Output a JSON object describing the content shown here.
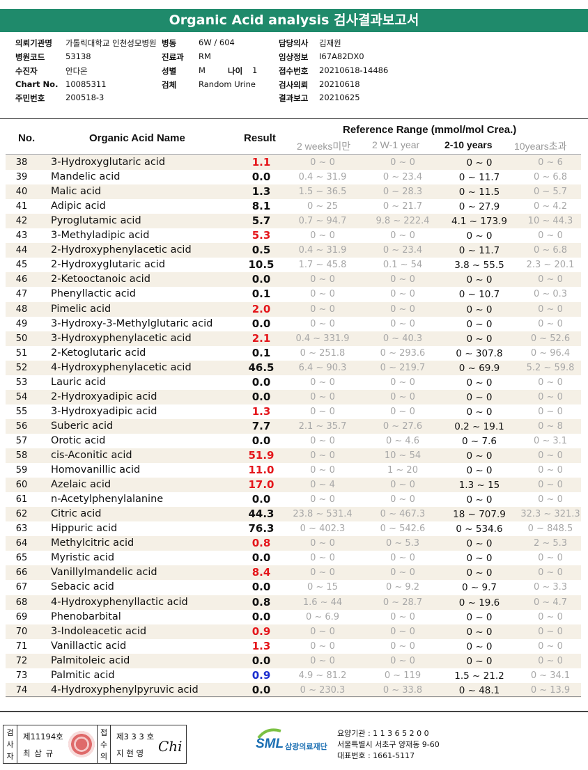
{
  "title": "Organic Acid analysis 검사결과보고서",
  "info": {
    "left": [
      {
        "label": "의뢰기관명",
        "value": "가톨릭대학교 인천성모병원"
      },
      {
        "label": "병원코드",
        "value": "53138"
      },
      {
        "label": "수진자",
        "value": "안다온"
      },
      {
        "label": "Chart No.",
        "value": "10085311"
      },
      {
        "label": "주민번호",
        "value": "200518-3"
      }
    ],
    "mid": [
      {
        "label": "병동",
        "value": "6W / 604"
      },
      {
        "label": "진료과",
        "value": "RM"
      },
      {
        "label": "성별",
        "value": "M"
      },
      {
        "label": "검체",
        "value": "Random Urine"
      }
    ],
    "age_label": "나이",
    "age_value": "1",
    "right": [
      {
        "label": "담당의사",
        "value": "김재원"
      },
      {
        "label": "임상정보",
        "value": "I67A82DX0"
      },
      {
        "label": "접수번호",
        "value": "20210618-14486"
      },
      {
        "label": "검사의뢰",
        "value": "20210618"
      },
      {
        "label": "결과보고",
        "value": "20210625"
      }
    ]
  },
  "table": {
    "col_no": "No.",
    "col_name": "Organic Acid Name",
    "col_result": "Result",
    "ref_title": "Reference Range (mmol/mol Crea.)",
    "ref_cols": [
      "2 weeks미만",
      "2 W-1 year",
      "2-10 years",
      "10years초과"
    ],
    "rows": [
      {
        "no": "38",
        "name": "3-Hydroxyglutaric acid",
        "result": "1.1",
        "flag": "high",
        "r1": "0 ~ 0",
        "r2": "0 ~ 0",
        "r3": "0 ~ 0",
        "r4": "0 ~ 6"
      },
      {
        "no": "39",
        "name": "Mandelic acid",
        "result": "0.0",
        "flag": "",
        "r1": "0.4 ~ 31.9",
        "r2": "0 ~ 23.4",
        "r3": "0 ~ 11.7",
        "r4": "0 ~ 6.8"
      },
      {
        "no": "40",
        "name": "Malic acid",
        "result": "1.3",
        "flag": "",
        "r1": "1.5 ~ 36.5",
        "r2": "0 ~ 28.3",
        "r3": "0 ~ 11.5",
        "r4": "0 ~ 5.7"
      },
      {
        "no": "41",
        "name": "Adipic acid",
        "result": "8.1",
        "flag": "",
        "r1": "0 ~ 25",
        "r2": "0 ~ 21.7",
        "r3": "0 ~ 27.9",
        "r4": "0 ~ 4.2"
      },
      {
        "no": "42",
        "name": "Pyroglutamic acid",
        "result": "5.7",
        "flag": "",
        "r1": "0.7 ~ 94.7",
        "r2": "9.8 ~ 222.4",
        "r3": "4.1 ~ 173.9",
        "r4": "10 ~ 44.3"
      },
      {
        "no": "43",
        "name": "3-Methyladipic acid",
        "result": "5.3",
        "flag": "high",
        "r1": "0 ~ 0",
        "r2": "0 ~ 0",
        "r3": "0 ~ 0",
        "r4": "0 ~ 0"
      },
      {
        "no": "44",
        "name": "2-Hydroxyphenylacetic acid",
        "result": "0.5",
        "flag": "",
        "r1": "0.4 ~ 31.9",
        "r2": "0 ~ 23.4",
        "r3": "0 ~ 11.7",
        "r4": "0 ~ 6.8"
      },
      {
        "no": "45",
        "name": "2-Hydroxyglutaric acid",
        "result": "10.5",
        "flag": "",
        "r1": "1.7 ~ 45.8",
        "r2": "0.1 ~ 54",
        "r3": "3.8 ~ 55.5",
        "r4": "2.3 ~ 20.1"
      },
      {
        "no": "46",
        "name": "2-Ketooctanoic acid",
        "result": "0.0",
        "flag": "",
        "r1": "0 ~ 0",
        "r2": "0 ~ 0",
        "r3": "0 ~ 0",
        "r4": "0 ~ 0"
      },
      {
        "no": "47",
        "name": "Phenyllactic acid",
        "result": "0.1",
        "flag": "",
        "r1": "0 ~ 0",
        "r2": "0 ~ 0",
        "r3": "0 ~ 10.7",
        "r4": "0 ~ 0.3"
      },
      {
        "no": "48",
        "name": "Pimelic acid",
        "result": "2.0",
        "flag": "high",
        "r1": "0 ~ 0",
        "r2": "0 ~ 0",
        "r3": "0 ~ 0",
        "r4": "0 ~ 0"
      },
      {
        "no": "49",
        "name": "3-Hydroxy-3-Methylglutaric acid",
        "result": "0.0",
        "flag": "",
        "r1": "0 ~ 0",
        "r2": "0 ~ 0",
        "r3": "0 ~ 0",
        "r4": "0 ~ 0"
      },
      {
        "no": "50",
        "name": "3-Hydroxyphenylacetic acid",
        "result": "2.1",
        "flag": "high",
        "r1": "0.4 ~ 331.9",
        "r2": "0 ~ 40.3",
        "r3": "0 ~ 0",
        "r4": "0 ~ 52.6"
      },
      {
        "no": "51",
        "name": "2-Ketoglutaric acid",
        "result": "0.1",
        "flag": "",
        "r1": "0 ~ 251.8",
        "r2": "0 ~ 293.6",
        "r3": "0 ~ 307.8",
        "r4": "0 ~ 96.4"
      },
      {
        "no": "52",
        "name": "4-Hydroxyphenylacetic acid",
        "result": "46.5",
        "flag": "",
        "r1": "6.4 ~ 90.3",
        "r2": "0 ~ 219.7",
        "r3": "0 ~ 69.9",
        "r4": "5.2 ~ 59.8"
      },
      {
        "no": "53",
        "name": "Lauric acid",
        "result": "0.0",
        "flag": "",
        "r1": "0 ~ 0",
        "r2": "0 ~ 0",
        "r3": "0 ~ 0",
        "r4": "0 ~ 0"
      },
      {
        "no": "54",
        "name": "2-Hydroxyadipic acid",
        "result": "0.0",
        "flag": "",
        "r1": "0 ~ 0",
        "r2": "0 ~ 0",
        "r3": "0 ~ 0",
        "r4": "0 ~ 0"
      },
      {
        "no": "55",
        "name": "3-Hydroxyadipic acid",
        "result": "1.3",
        "flag": "high",
        "r1": "0 ~ 0",
        "r2": "0 ~ 0",
        "r3": "0 ~ 0",
        "r4": "0 ~ 0"
      },
      {
        "no": "56",
        "name": "Suberic acid",
        "result": "7.7",
        "flag": "",
        "r1": "2.1 ~ 35.7",
        "r2": "0 ~ 27.6",
        "r3": "0.2 ~ 19.1",
        "r4": "0 ~ 8"
      },
      {
        "no": "57",
        "name": "Orotic acid",
        "result": "0.0",
        "flag": "",
        "r1": "0 ~ 0",
        "r2": "0 ~ 4.6",
        "r3": "0 ~ 7.6",
        "r4": "0 ~ 3.1"
      },
      {
        "no": "58",
        "name": "cis-Aconitic acid",
        "result": "51.9",
        "flag": "high",
        "r1": "0 ~ 0",
        "r2": "10 ~ 54",
        "r3": "0 ~ 0",
        "r4": "0 ~ 0"
      },
      {
        "no": "59",
        "name": "Homovanillic acid",
        "result": "11.0",
        "flag": "high",
        "r1": "0 ~ 0",
        "r2": "1 ~ 20",
        "r3": "0 ~ 0",
        "r4": "0 ~ 0"
      },
      {
        "no": "60",
        "name": "Azelaic acid",
        "result": "17.0",
        "flag": "high",
        "r1": "0 ~ 4",
        "r2": "0 ~ 0",
        "r3": "1.3 ~ 15",
        "r4": "0 ~ 0"
      },
      {
        "no": "61",
        "name": "n-Acetylphenylalanine",
        "result": "0.0",
        "flag": "",
        "r1": "0 ~ 0",
        "r2": "0 ~ 0",
        "r3": "0 ~ 0",
        "r4": "0 ~ 0"
      },
      {
        "no": "62",
        "name": "Citric acid",
        "result": "44.3",
        "flag": "",
        "r1": "23.8 ~ 531.4",
        "r2": "0 ~ 467.3",
        "r3": "18 ~ 707.9",
        "r4": "32.3 ~ 321.3"
      },
      {
        "no": "63",
        "name": "Hippuric acid",
        "result": "76.3",
        "flag": "",
        "r1": "0 ~ 402.3",
        "r2": "0 ~ 542.6",
        "r3": "0 ~ 534.6",
        "r4": "0 ~ 848.5"
      },
      {
        "no": "64",
        "name": "Methylcitric acid",
        "result": "0.8",
        "flag": "high",
        "r1": "0 ~ 0",
        "r2": "0 ~ 5.3",
        "r3": "0 ~ 0",
        "r4": "2 ~ 5.3"
      },
      {
        "no": "65",
        "name": "Myristic acid",
        "result": "0.0",
        "flag": "",
        "r1": "0 ~ 0",
        "r2": "0 ~ 0",
        "r3": "0 ~ 0",
        "r4": "0 ~ 0"
      },
      {
        "no": "66",
        "name": "Vanillylmandelic acid",
        "result": "8.4",
        "flag": "high",
        "r1": "0 ~ 0",
        "r2": "0 ~ 0",
        "r3": "0 ~ 0",
        "r4": "0 ~ 0"
      },
      {
        "no": "67",
        "name": "Sebacic acid",
        "result": "0.0",
        "flag": "",
        "r1": "0 ~ 15",
        "r2": "0 ~ 9.2",
        "r3": "0 ~ 9.7",
        "r4": "0 ~ 3.3"
      },
      {
        "no": "68",
        "name": "4-Hydroxyphenyllactic acid",
        "result": "0.8",
        "flag": "",
        "r1": "1.6 ~ 44",
        "r2": "0 ~ 28.7",
        "r3": "0 ~ 19.6",
        "r4": "0 ~ 4.7"
      },
      {
        "no": "69",
        "name": "Phenobarbital",
        "result": "0.0",
        "flag": "",
        "r1": "0 ~ 6.9",
        "r2": "0 ~ 0",
        "r3": "0 ~ 0",
        "r4": "0 ~ 0"
      },
      {
        "no": "70",
        "name": "3-Indoleacetic acid",
        "result": "0.9",
        "flag": "high",
        "r1": "0 ~ 0",
        "r2": "0 ~ 0",
        "r3": "0 ~ 0",
        "r4": "0 ~ 0"
      },
      {
        "no": "71",
        "name": "Vanillactic acid",
        "result": "1.3",
        "flag": "high",
        "r1": "0 ~ 0",
        "r2": "0 ~ 0",
        "r3": "0 ~ 0",
        "r4": "0 ~ 0"
      },
      {
        "no": "72",
        "name": "Palmitoleic acid",
        "result": "0.0",
        "flag": "",
        "r1": "0 ~ 0",
        "r2": "0 ~ 0",
        "r3": "0 ~ 0",
        "r4": "0 ~ 0"
      },
      {
        "no": "73",
        "name": "Palmitic acid",
        "result": "0.9",
        "flag": "low",
        "r1": "4.9 ~ 81.2",
        "r2": "0 ~ 119",
        "r3": "1.5 ~ 21.2",
        "r4": "0 ~ 34.1"
      },
      {
        "no": "74",
        "name": "4-Hydroxyphenylpyruvic acid",
        "result": "0.0",
        "flag": "",
        "r1": "0 ~ 230.3",
        "r2": "0 ~ 33.8",
        "r3": "0 ~ 48.1",
        "r4": "0 ~ 13.9"
      }
    ]
  },
  "footer": {
    "examiner_label": "검사자",
    "examiner_license": "제11194호",
    "examiner_name": "최 삼 규",
    "approver_label": "접수의",
    "approver_license": "제3 3 3 호",
    "approver_name": "지 현 영",
    "signature": "Chi",
    "logo_text": "SML",
    "logo_sub": "삼광의료재단",
    "code_line": "요양기관 : 1 1 3 6 5 2 0 0",
    "address": "서울특별시 서초구 양재동 9-60",
    "phone": "대표번호 : 1661-5117"
  },
  "colors": {
    "title_bg": "#1f8a6b",
    "alt_row": "#f5f0e6",
    "high": "#e4151a",
    "low": "#1a2ecf"
  }
}
